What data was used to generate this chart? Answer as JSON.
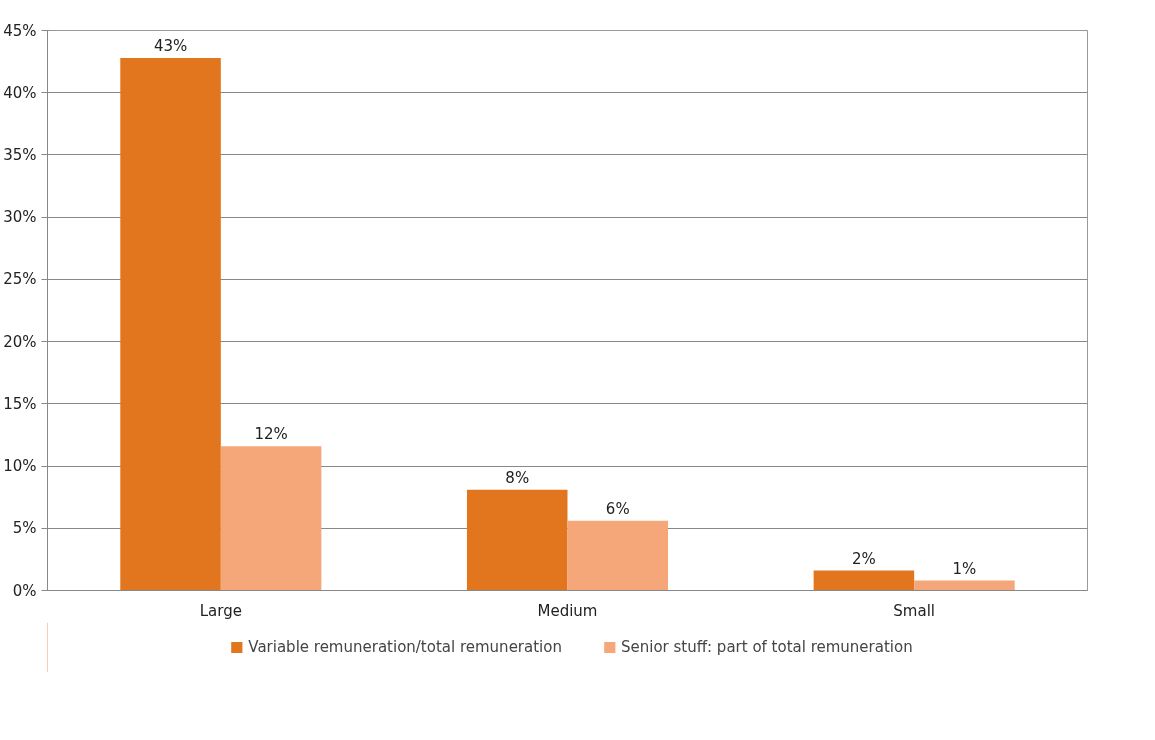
{
  "chart_data": {
    "type": "bar",
    "categories": [
      "Large",
      "Medium",
      "Small"
    ],
    "series": [
      {
        "name": "Variable remuneration/total remuneration",
        "color": "#e2761f",
        "values": [
          42.8,
          8.1,
          1.6
        ],
        "value_labels": [
          "43%",
          "8%",
          "2%"
        ]
      },
      {
        "name": "Senior stuff: part of total remuneration",
        "color": "#f5a77a",
        "values": [
          11.6,
          5.6,
          0.8
        ],
        "value_labels": [
          "12%",
          "6%",
          "1%"
        ]
      }
    ],
    "ylim": [
      0,
      45
    ],
    "yticks": [
      {
        "value": 0,
        "label": "0%"
      },
      {
        "value": 5,
        "label": "5%"
      },
      {
        "value": 10,
        "label": "10%"
      },
      {
        "value": 15,
        "label": "15%"
      },
      {
        "value": 20,
        "label": "20%"
      },
      {
        "value": 25,
        "label": "25%"
      },
      {
        "value": 30,
        "label": "30%"
      },
      {
        "value": 35,
        "label": "35%"
      },
      {
        "value": 40,
        "label": "40%"
      },
      {
        "value": 45,
        "label": "45%"
      }
    ],
    "grid": "y",
    "legend": "bottom"
  }
}
